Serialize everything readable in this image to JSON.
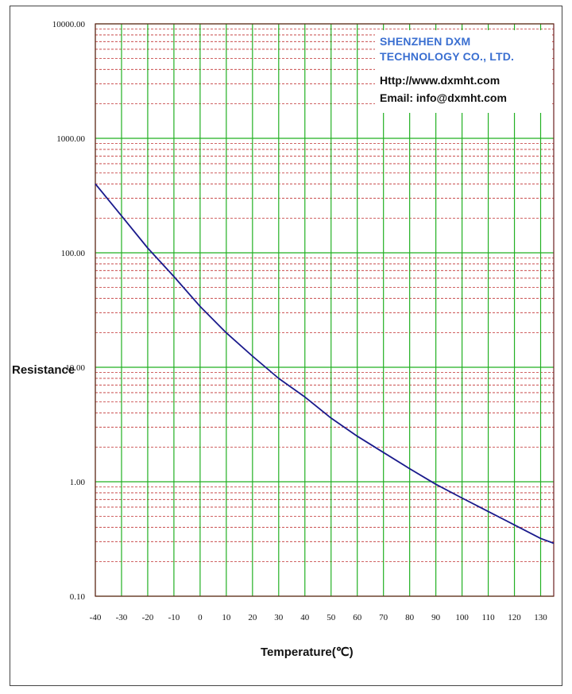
{
  "chart_data": {
    "type": "line",
    "yscale": "log",
    "ylabel": "Resistance",
    "xlabel": "Temperature(℃)",
    "xlim": [
      -40,
      135
    ],
    "ylim": [
      0.1,
      10000
    ],
    "x_ticks": [
      -40,
      -30,
      -20,
      -10,
      0,
      10,
      20,
      30,
      40,
      50,
      60,
      70,
      80,
      90,
      100,
      110,
      120,
      130
    ],
    "y_tick_labels": [
      "10000.00",
      "1000.00",
      "100.00",
      "10.00",
      "1.00",
      "0.10"
    ],
    "y_ticks": [
      10000,
      1000,
      100,
      10,
      1,
      0.1
    ],
    "grid": true,
    "series": [
      {
        "color": "#1a1a8c",
        "x": [
          -40,
          -30,
          -20,
          -10,
          0,
          10,
          20,
          30,
          40,
          50,
          60,
          70,
          80,
          90,
          100,
          110,
          120,
          130,
          135
        ],
        "y": [
          400,
          210,
          110,
          62,
          34,
          20,
          12.5,
          8,
          5.5,
          3.6,
          2.5,
          1.8,
          1.3,
          0.95,
          0.72,
          0.55,
          0.42,
          0.32,
          0.29
        ]
      }
    ]
  },
  "company": {
    "name_line1": "SHENZHEN DXM",
    "name_line2": "TECHNOLOGY CO., LTD.",
    "website": "Http://www.dxmht.com",
    "email": "Email: info@dxmht.com"
  },
  "colors": {
    "major_grid": "#22b022",
    "minor_grid": "#c03030",
    "plot_border": "#6b2020",
    "company_blue": "#3a6fd1"
  }
}
